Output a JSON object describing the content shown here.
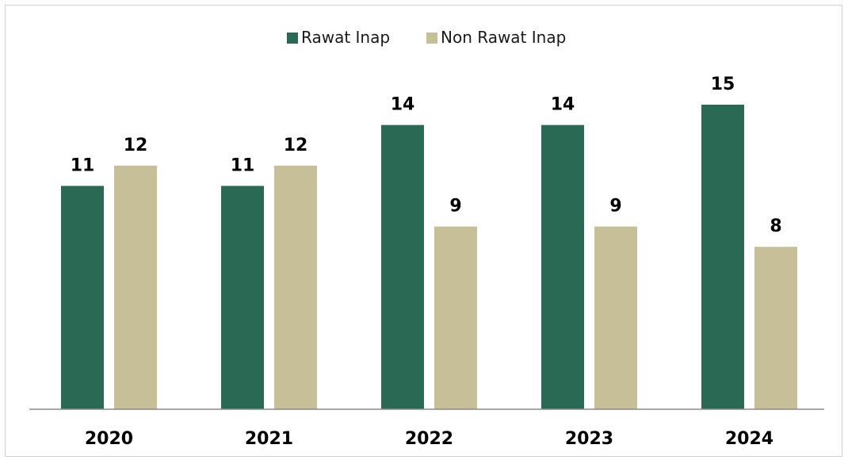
{
  "chart_data": {
    "type": "bar",
    "categories": [
      "2020",
      "2021",
      "2022",
      "2023",
      "2024"
    ],
    "series": [
      {
        "name": "Rawat Inap",
        "values": [
          11,
          11,
          14,
          14,
          15
        ],
        "color": "#2a6a55"
      },
      {
        "name": "Non Rawat Inap",
        "values": [
          12,
          12,
          9,
          9,
          8
        ],
        "color": "#c6bf97"
      }
    ],
    "ylim": [
      0,
      18
    ],
    "grid": false,
    "legend_position": "top-center",
    "data_labels": true
  }
}
